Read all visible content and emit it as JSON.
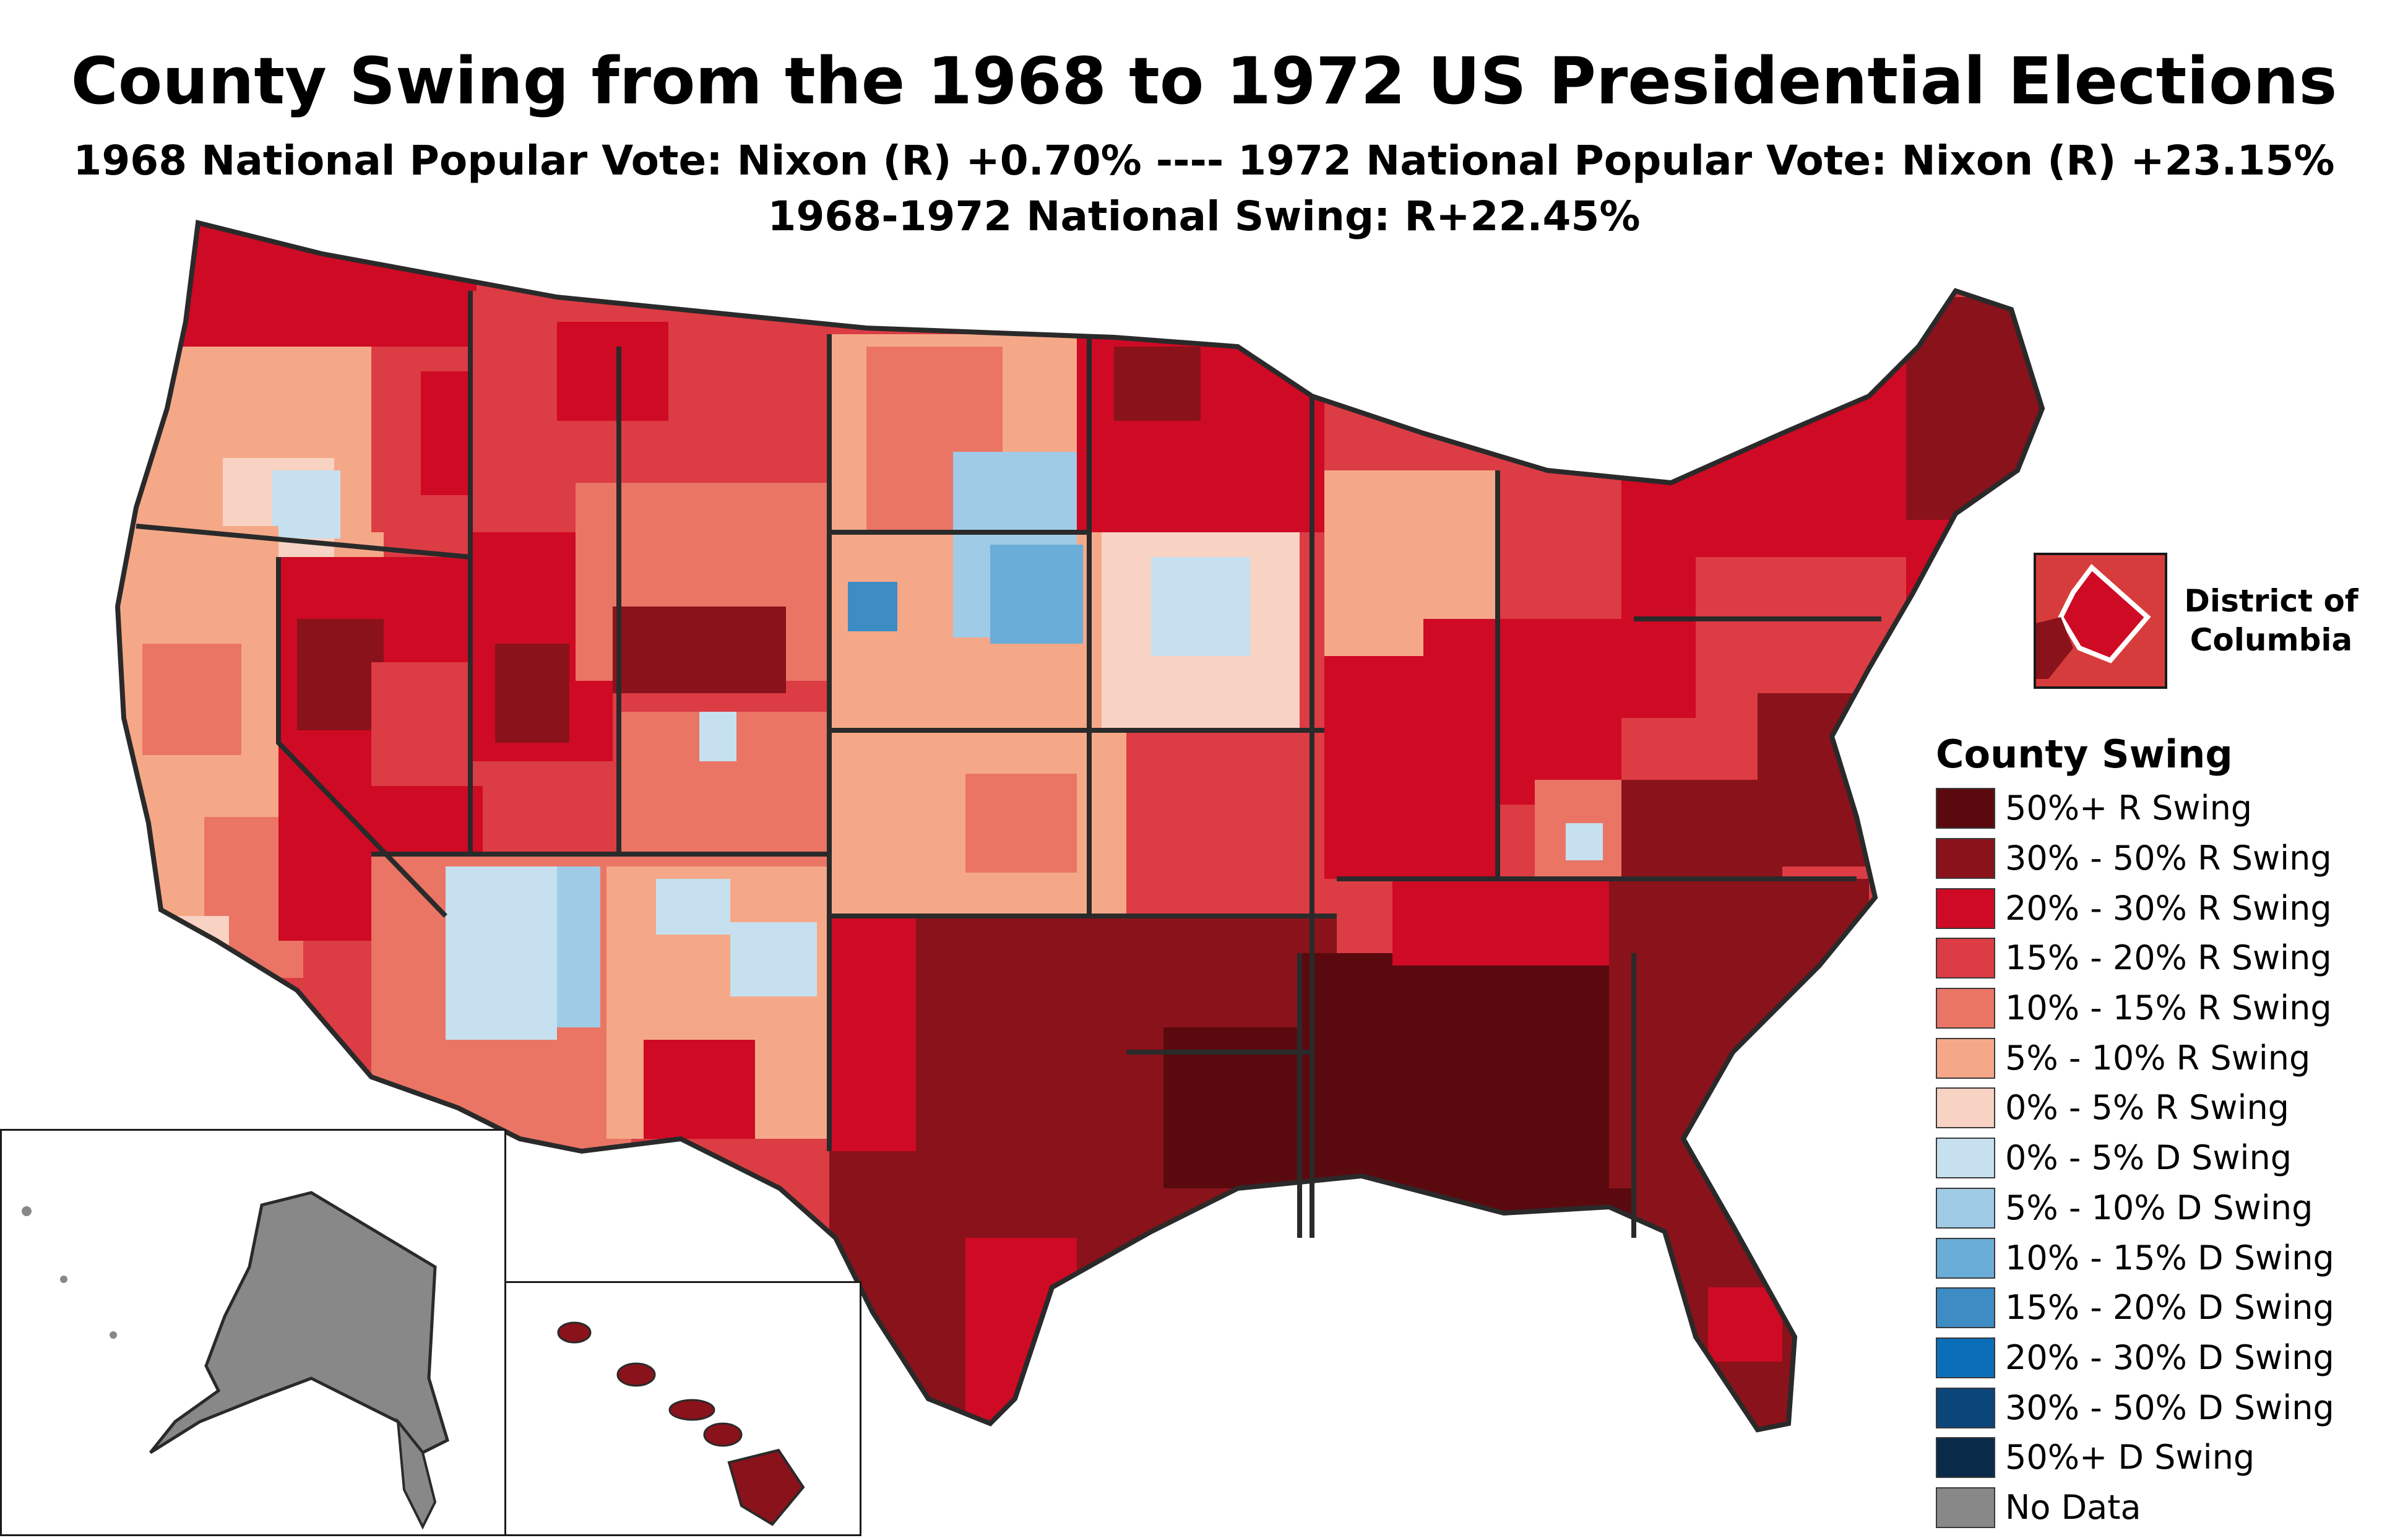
{
  "title": "County Swing from the 1968 to 1972 US Presidential Elections",
  "subtitle_1": "1968 National Popular Vote: Nixon (R) +0.70% ---- 1972 National Popular Vote: Nixon (R) +23.15%",
  "subtitle_2": "1968-1972 National Swing: R+22.45%",
  "dc_inset_label": "District of Columbia",
  "legend": {
    "title": "County Swing",
    "items": [
      {
        "label": "50%+ R Swing",
        "color": "#5a0a0f"
      },
      {
        "label": "30% - 50% R Swing",
        "color": "#8a121b"
      },
      {
        "label": "20% - 30% R Swing",
        "color": "#cf0a24"
      },
      {
        "label": "15% - 20% R Swing",
        "color": "#dc3c44"
      },
      {
        "label": "10% - 15% R Swing",
        "color": "#ea7565"
      },
      {
        "label": "5% - 10% R Swing",
        "color": "#f5a888"
      },
      {
        "label": "0% - 5% R Swing",
        "color": "#f8d2c2"
      },
      {
        "label": "0% - 5% D Swing",
        "color": "#c6e0ef"
      },
      {
        "label": "5% - 10% D Swing",
        "color": "#9fcbe6"
      },
      {
        "label": "10% - 15% D Swing",
        "color": "#6aadd8"
      },
      {
        "label": "15% - 20% D Swing",
        "color": "#3d8cc4"
      },
      {
        "label": "20% - 30% D Swing",
        "color": "#0a6fb8"
      },
      {
        "label": "30% - 50% D Swing",
        "color": "#0c457a"
      },
      {
        "label": "50%+ D Swing",
        "color": "#0a2a4a"
      },
      {
        "label": "No Data",
        "color": "#888888"
      }
    ]
  }
}
